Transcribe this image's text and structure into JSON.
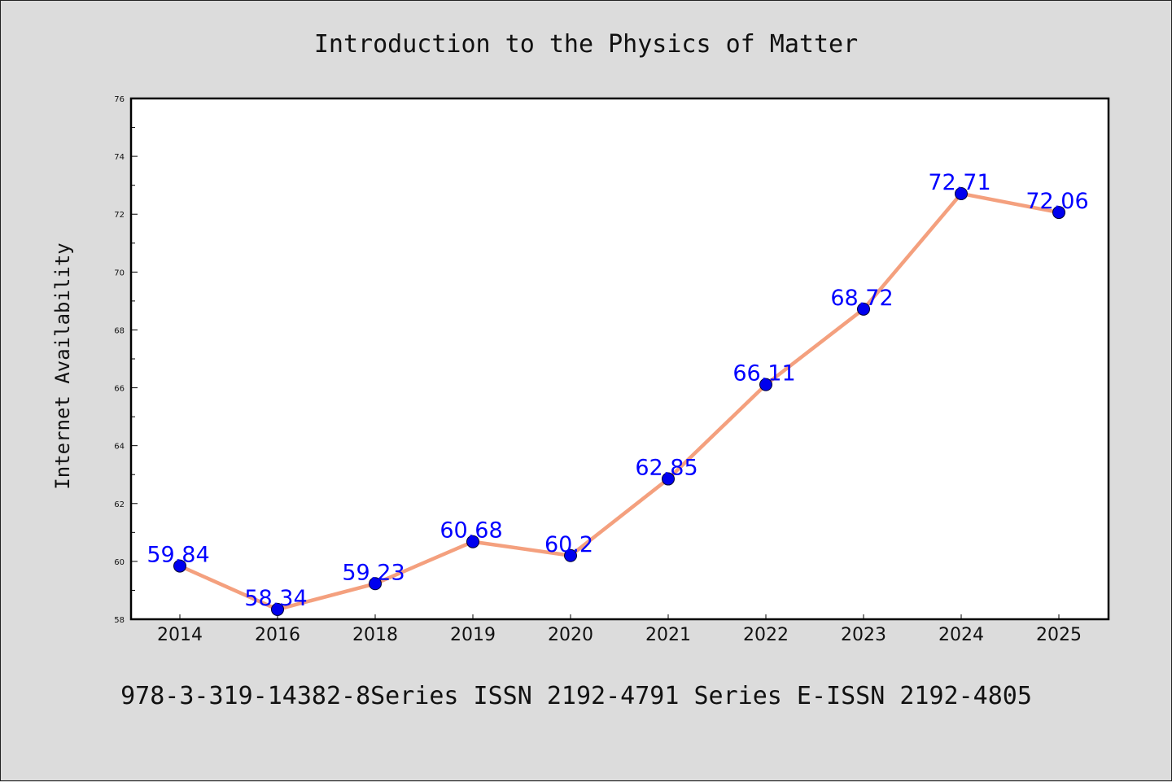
{
  "chart_data": {
    "type": "line",
    "title": "Introduction to the Physics of Matter",
    "ylabel": "Internet Availability",
    "xlabel": "",
    "footer": "978-3-319-14382-8Series ISSN 2192-4791 Series E-ISSN 2192-4805",
    "categories": [
      "2014",
      "2016",
      "2018",
      "2019",
      "2020",
      "2021",
      "2022",
      "2023",
      "2024",
      "2025"
    ],
    "values": [
      59.84,
      58.34,
      59.23,
      60.68,
      60.2,
      62.85,
      66.11,
      68.72,
      72.71,
      72.06
    ],
    "data_labels": [
      "59.84",
      "58.34",
      "59.23",
      "60.68",
      "60.2",
      "62.85",
      "66.11",
      "68.72",
      "72.71",
      "72.06"
    ],
    "ylim": [
      58,
      76
    ],
    "yticks": [
      58,
      60,
      62,
      64,
      66,
      68,
      70,
      72,
      74,
      76
    ],
    "grid": false,
    "colors": {
      "line": "#f4a07e",
      "marker": "#0000ee",
      "label": "#0000ff",
      "background": "#dcdcdc",
      "plot_area": "#ffffff"
    }
  }
}
